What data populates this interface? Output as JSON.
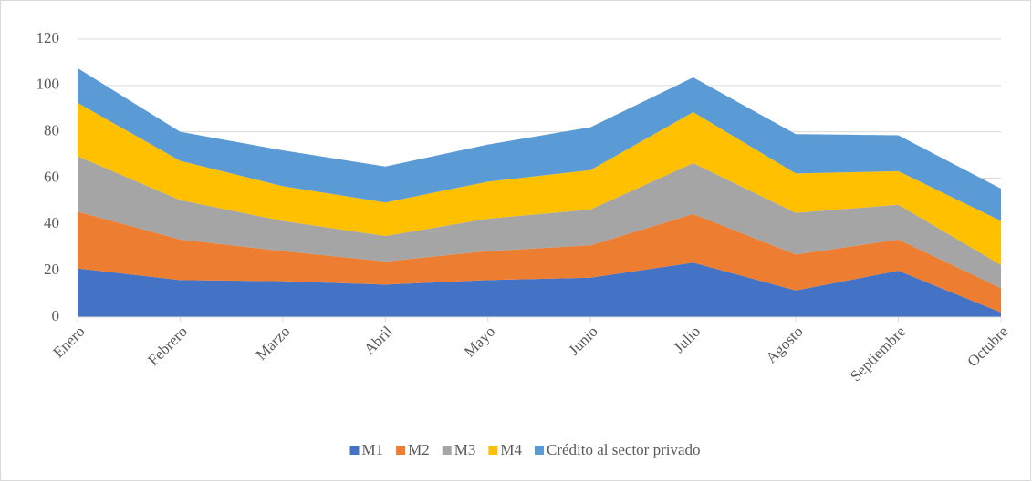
{
  "chart_data": {
    "type": "stacked_area",
    "categories": [
      "Enero",
      "Febrero",
      "Marzo",
      "Abril",
      "Mayo",
      "Junio",
      "Julio",
      "Agosto",
      "Septiembre",
      "Octubre"
    ],
    "series": [
      {
        "name": "M1",
        "color": "#4472c4",
        "values": [
          21,
          16,
          15.5,
          14,
          16,
          17,
          23.5,
          11.5,
          20,
          2
        ]
      },
      {
        "name": "M2",
        "color": "#ed7d31",
        "values": [
          24.5,
          17.5,
          13,
          10,
          12.5,
          14,
          21,
          15.5,
          13.5,
          10.5
        ]
      },
      {
        "name": "M3",
        "color": "#a5a5a5",
        "values": [
          24,
          17,
          13,
          11,
          14,
          15.5,
          22,
          18,
          15,
          10
        ]
      },
      {
        "name": "M4",
        "color": "#ffc000",
        "values": [
          23,
          17,
          15,
          14.5,
          16,
          17,
          22,
          17,
          14.5,
          19
        ]
      },
      {
        "name": "Crédito al sector privado",
        "color": "#5b9bd5",
        "values": [
          15,
          12.5,
          15.5,
          15.5,
          16,
          18.5,
          15,
          17,
          15.5,
          14
        ]
      }
    ],
    "ylim": [
      0,
      120
    ],
    "yticks": [
      0,
      20,
      40,
      60,
      80,
      100,
      120
    ],
    "grid": true,
    "legend": "bottom"
  }
}
